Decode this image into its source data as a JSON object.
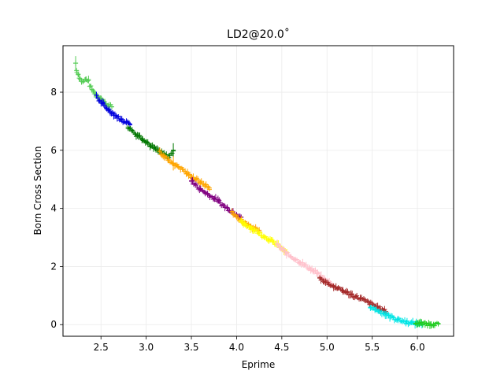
{
  "chart_data": {
    "type": "scatter",
    "title": "LD2@20.0˚",
    "xlabel": "Eprime",
    "ylabel": "Born Cross Section",
    "xlim": [
      2.08,
      6.4
    ],
    "ylim": [
      -0.4,
      9.6
    ],
    "xticks": [
      "2.5",
      "3.0",
      "3.5",
      "4.0",
      "4.5",
      "5.0",
      "5.5",
      "6.0"
    ],
    "yticks": [
      "0",
      "2",
      "4",
      "6",
      "8"
    ],
    "grid": true,
    "legend": "none",
    "series": [
      {
        "color": "#55cc55",
        "x_range": [
          2.22,
          2.62
        ],
        "points": [
          [
            2.22,
            9.0
          ],
          [
            2.23,
            8.75
          ],
          [
            2.25,
            8.6
          ],
          [
            2.27,
            8.45
          ],
          [
            2.3,
            8.35
          ],
          [
            2.33,
            8.45
          ],
          [
            2.36,
            8.4
          ],
          [
            2.38,
            8.2
          ],
          [
            2.4,
            8.1
          ],
          [
            2.42,
            8.0
          ],
          [
            2.44,
            7.95
          ],
          [
            2.46,
            7.85
          ],
          [
            2.5,
            7.8
          ],
          [
            2.55,
            7.6
          ],
          [
            2.58,
            7.55
          ],
          [
            2.62,
            7.5
          ]
        ]
      },
      {
        "color": "#0000dd",
        "x_range": [
          2.45,
          2.82
        ],
        "points": [
          [
            2.45,
            7.9
          ],
          [
            2.48,
            7.7
          ],
          [
            2.52,
            7.6
          ],
          [
            2.56,
            7.45
          ],
          [
            2.6,
            7.35
          ],
          [
            2.64,
            7.25
          ],
          [
            2.68,
            7.15
          ],
          [
            2.72,
            7.05
          ],
          [
            2.76,
            7.0
          ],
          [
            2.8,
            6.95
          ],
          [
            2.82,
            6.9
          ]
        ]
      },
      {
        "color": "#007700",
        "x_range": [
          2.8,
          3.3
        ],
        "points": [
          [
            2.8,
            6.8
          ],
          [
            2.84,
            6.7
          ],
          [
            2.88,
            6.55
          ],
          [
            2.92,
            6.5
          ],
          [
            2.96,
            6.4
          ],
          [
            3.0,
            6.3
          ],
          [
            3.05,
            6.15
          ],
          [
            3.1,
            6.05
          ],
          [
            3.15,
            5.95
          ],
          [
            3.2,
            5.85
          ],
          [
            3.25,
            5.75
          ],
          [
            3.3,
            6.0
          ]
        ]
      },
      {
        "color": "#ffa500",
        "x_range": [
          3.15,
          3.7
        ],
        "points": [
          [
            3.15,
            5.95
          ],
          [
            3.2,
            5.8
          ],
          [
            3.25,
            5.65
          ],
          [
            3.3,
            5.55
          ],
          [
            3.35,
            5.45
          ],
          [
            3.4,
            5.35
          ],
          [
            3.45,
            5.2
          ],
          [
            3.5,
            5.1
          ],
          [
            3.55,
            5.0
          ],
          [
            3.6,
            4.9
          ],
          [
            3.65,
            4.8
          ],
          [
            3.7,
            4.7
          ]
        ]
      },
      {
        "color": "#800080",
        "x_range": [
          3.5,
          4.05
        ],
        "points": [
          [
            3.5,
            4.95
          ],
          [
            3.55,
            4.8
          ],
          [
            3.6,
            4.65
          ],
          [
            3.65,
            4.55
          ],
          [
            3.7,
            4.45
          ],
          [
            3.75,
            4.35
          ],
          [
            3.8,
            4.25
          ],
          [
            3.85,
            4.1
          ],
          [
            3.9,
            4.0
          ],
          [
            3.95,
            3.9
          ],
          [
            4.0,
            3.8
          ],
          [
            4.05,
            3.7
          ]
        ]
      },
      {
        "color": "#ffa500",
        "x_range": [
          3.95,
          4.25
        ],
        "points": [
          [
            3.95,
            3.85
          ],
          [
            4.0,
            3.7
          ],
          [
            4.05,
            3.6
          ],
          [
            4.1,
            3.5
          ],
          [
            4.15,
            3.4
          ],
          [
            4.2,
            3.3
          ],
          [
            4.25,
            3.2
          ]
        ]
      },
      {
        "color": "#ffff00",
        "x_range": [
          4.05,
          4.55
        ],
        "points": [
          [
            4.05,
            3.55
          ],
          [
            4.1,
            3.45
          ],
          [
            4.15,
            3.35
          ],
          [
            4.2,
            3.25
          ],
          [
            4.25,
            3.15
          ],
          [
            4.3,
            3.05
          ],
          [
            4.35,
            2.95
          ],
          [
            4.4,
            2.85
          ],
          [
            4.45,
            2.75
          ],
          [
            4.5,
            2.6
          ],
          [
            4.55,
            2.5
          ]
        ]
      },
      {
        "color": "#ffc0cb",
        "x_range": [
          4.45,
          5.05
        ],
        "points": [
          [
            4.45,
            2.75
          ],
          [
            4.5,
            2.6
          ],
          [
            4.55,
            2.45
          ],
          [
            4.6,
            2.35
          ],
          [
            4.65,
            2.25
          ],
          [
            4.7,
            2.15
          ],
          [
            4.75,
            2.05
          ],
          [
            4.8,
            1.95
          ],
          [
            4.85,
            1.85
          ],
          [
            4.9,
            1.75
          ],
          [
            4.95,
            1.6
          ],
          [
            5.0,
            1.5
          ],
          [
            5.05,
            1.4
          ]
        ]
      },
      {
        "color": "#a52a2a",
        "x_range": [
          4.92,
          5.65
        ],
        "points": [
          [
            4.92,
            1.6
          ],
          [
            4.97,
            1.5
          ],
          [
            5.02,
            1.4
          ],
          [
            5.07,
            1.32
          ],
          [
            5.12,
            1.25
          ],
          [
            5.17,
            1.18
          ],
          [
            5.22,
            1.1
          ],
          [
            5.27,
            1.03
          ],
          [
            5.32,
            0.96
          ],
          [
            5.37,
            0.9
          ],
          [
            5.42,
            0.82
          ],
          [
            5.47,
            0.74
          ],
          [
            5.52,
            0.66
          ],
          [
            5.57,
            0.58
          ],
          [
            5.62,
            0.5
          ],
          [
            5.65,
            0.45
          ]
        ]
      },
      {
        "color": "#00e5e5",
        "x_range": [
          5.48,
          6.05
        ],
        "points": [
          [
            5.48,
            0.6
          ],
          [
            5.53,
            0.53
          ],
          [
            5.58,
            0.46
          ],
          [
            5.63,
            0.38
          ],
          [
            5.68,
            0.3
          ],
          [
            5.73,
            0.24
          ],
          [
            5.78,
            0.18
          ],
          [
            5.83,
            0.13
          ],
          [
            5.88,
            0.09
          ],
          [
            5.93,
            0.06
          ],
          [
            5.98,
            0.04
          ],
          [
            6.02,
            0.03
          ],
          [
            6.05,
            0.03
          ]
        ]
      },
      {
        "color": "#22cc22",
        "x_range": [
          5.98,
          6.23
        ],
        "points": [
          [
            5.98,
            0.05
          ],
          [
            6.02,
            0.04
          ],
          [
            6.06,
            0.03
          ],
          [
            6.1,
            0.03
          ],
          [
            6.14,
            0.02
          ],
          [
            6.18,
            0.02
          ],
          [
            6.23,
            0.02
          ]
        ]
      }
    ]
  }
}
